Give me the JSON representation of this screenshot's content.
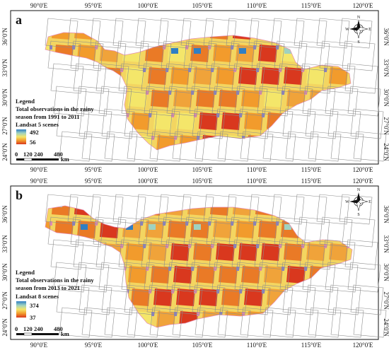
{
  "panels": [
    {
      "letter": "a",
      "lon_labels": [
        "90°0'E",
        "95°0'E",
        "100°0'E",
        "105°0'E",
        "110°0'E",
        "115°0'E",
        "120°0'E"
      ],
      "lat_labels": [
        "36°0'N",
        "33°0'N",
        "30°0'N",
        "27°0'N",
        "24°0'N"
      ],
      "legend": {
        "title": "Legend",
        "desc_line1": "Total observations in the rainy",
        "desc_line2": "season from 1991 to 2011",
        "sensor": "Landsat 5 scenes",
        "max": "492",
        "min": "56"
      },
      "scalebar": {
        "ticks": [
          "0",
          "120",
          "240",
          "480"
        ],
        "unit": "km"
      },
      "compass": {
        "n": "N",
        "s": "S",
        "e": "E",
        "w": "W"
      }
    },
    {
      "letter": "b",
      "lon_labels": [
        "90°0'E",
        "95°0'E",
        "100°0'E",
        "105°0'E",
        "110°0'E",
        "115°0'E",
        "120°0'E"
      ],
      "lat_labels": [
        "36°0'N",
        "33°0'N",
        "30°0'N",
        "27°0'N",
        "24°0'N"
      ],
      "legend": {
        "title": "Legend",
        "desc_line1": "Total observations in the rainy",
        "desc_line2": "season from 2013 to 2021",
        "sensor": "Landsat 8 scenes",
        "max": "374",
        "min": "37"
      },
      "scalebar": {
        "ticks": [
          "0",
          "120",
          "240",
          "480"
        ],
        "unit": "km"
      },
      "compass": {
        "n": "N",
        "s": "S",
        "e": "E",
        "w": "W"
      }
    }
  ],
  "colors": {
    "ramp_high": "#2f7fc4",
    "ramp_mid_high": "#9fd2c0",
    "ramp_mid": "#f4e66a",
    "ramp_mid_low": "#f29b2c",
    "ramp_low": "#d9381e",
    "overlap_purple": "#8a7fc6",
    "overlap_pink": "#e58ab0",
    "footprint_outline": "#888888"
  }
}
